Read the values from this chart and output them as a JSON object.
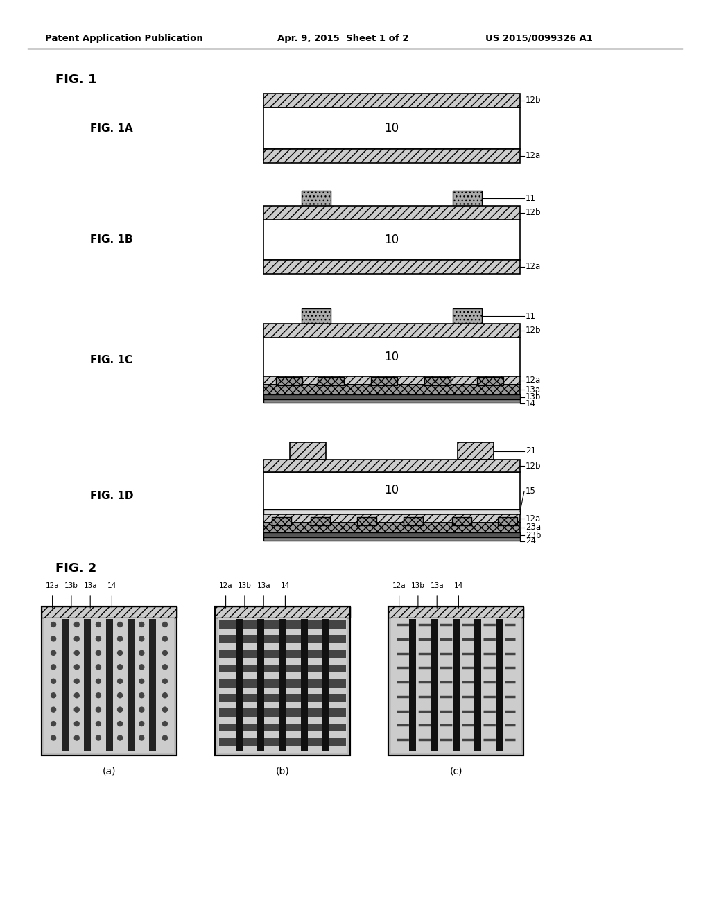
{
  "bg_color": "#ffffff",
  "header_left": "Patent Application Publication",
  "header_mid": "Apr. 9, 2015  Sheet 1 of 2",
  "header_right": "US 2015/0099326 A1",
  "fig1_label": "FIG. 1",
  "fig1a_label": "FIG. 1A",
  "fig1b_label": "FIG. 1B",
  "fig1c_label": "FIG. 1C",
  "fig1d_label": "FIG. 1D",
  "fig2_label": "FIG. 2",
  "hatch_color": "#555555",
  "dark_color": "#333333",
  "light_gray": "#cccccc",
  "medium_gray": "#999999",
  "white": "#ffffff",
  "black": "#000000"
}
